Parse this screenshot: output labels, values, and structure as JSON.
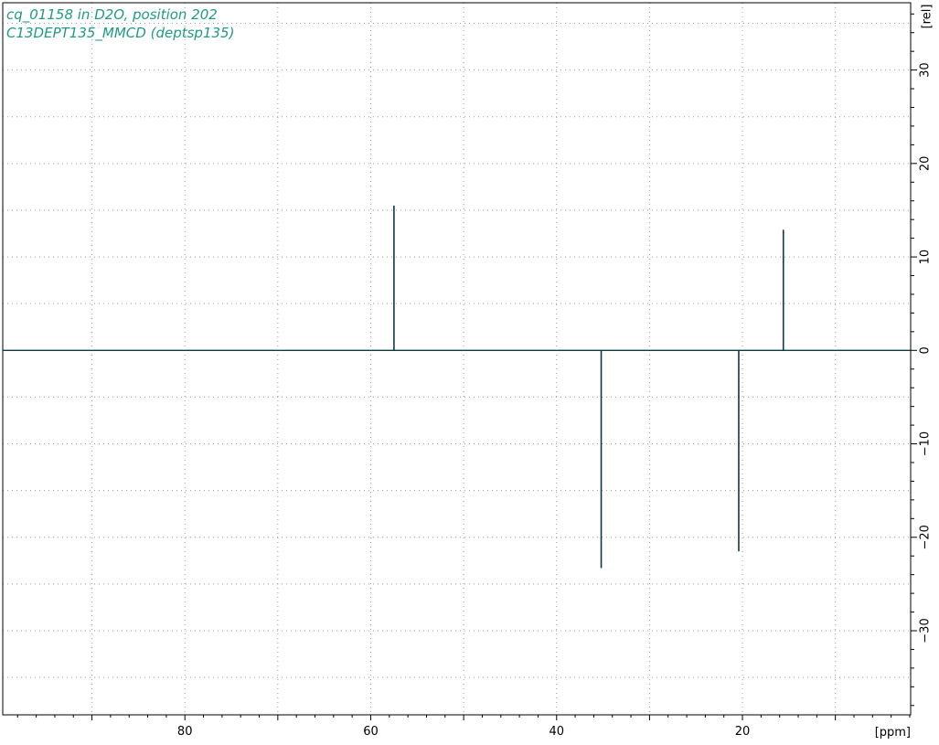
{
  "header": {
    "line1": "cq_01158 in D2O, position 202",
    "line2": "C13DEPT135_MMCD (deptsp135)"
  },
  "colors": {
    "title": "#1f9a87",
    "spectrum": "#0e3b3d",
    "frame": "#000000",
    "grid": "#9a9a9a",
    "background": "#ffffff"
  },
  "chart_data": {
    "type": "line",
    "title": "cq_01158 in D2O, position 202",
    "subtitle": "C13DEPT135_MMCD (deptsp135)",
    "xlabel": "[ppm]",
    "ylabel": "[rel]",
    "xlim": [
      99.6,
      1.9
    ],
    "ylim": [
      -39,
      37.2
    ],
    "x_reversed": true,
    "y_axis_side": "right",
    "x_ticks": [
      80,
      60,
      40,
      20
    ],
    "x_tick_labels": [
      "80",
      "60",
      "40",
      "20"
    ],
    "y_ticks": [
      30,
      20,
      10,
      0,
      -10,
      -20,
      -30
    ],
    "y_tick_labels": [
      "30",
      "20",
      "10",
      "0",
      "−10",
      "−20",
      "−30"
    ],
    "grid": true,
    "baseline": 0,
    "series": [
      {
        "peaks": [
          {
            "x": 57.5,
            "y": 15.5
          },
          {
            "x": 35.2,
            "y": -23.3
          },
          {
            "x": 20.4,
            "y": -21.5
          },
          {
            "x": 15.6,
            "y": 12.9
          }
        ]
      }
    ]
  }
}
